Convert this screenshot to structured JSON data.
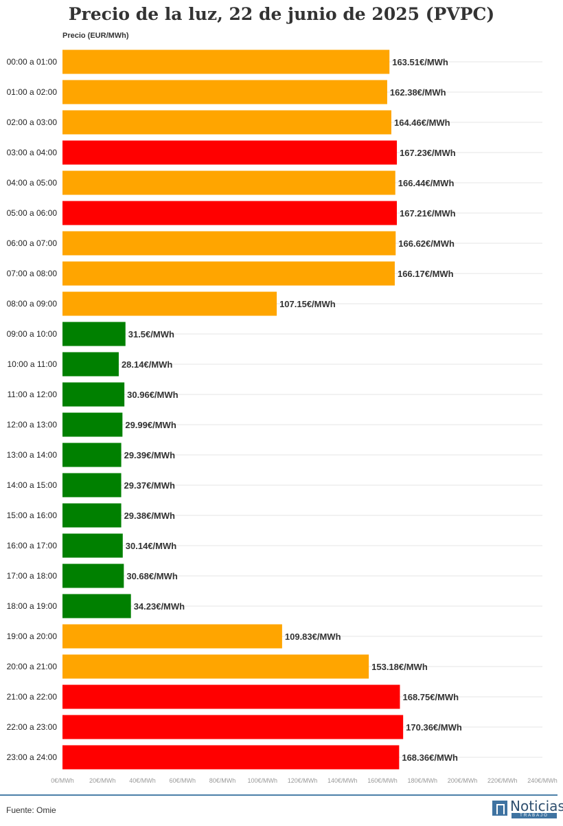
{
  "chart_data": {
    "type": "bar",
    "orientation": "horizontal",
    "title": "Precio de la luz, 22 de junio de 2025 (PVPC)",
    "ylabel": "Precio (EUR/MWh)",
    "xlim": [
      0,
      240
    ],
    "xticks": [
      "0€/MWh",
      "20€/MWh",
      "40€/MWh",
      "60€/MWh",
      "80€/MWh",
      "100€/MWh",
      "120€/MWh",
      "140€/MWh",
      "160€/MWh",
      "180€/MWh",
      "200€/MWh",
      "220€/MWh",
      "240€/MWh"
    ],
    "grid": true,
    "categories": [
      "00:00 a 01:00",
      "01:00 a 02:00",
      "02:00 a 03:00",
      "03:00 a 04:00",
      "04:00 a 05:00",
      "05:00 a 06:00",
      "06:00 a 07:00",
      "07:00 a 08:00",
      "08:00 a 09:00",
      "09:00 a 10:00",
      "10:00 a 11:00",
      "11:00 a 12:00",
      "12:00 a 13:00",
      "13:00 a 14:00",
      "14:00 a 15:00",
      "15:00 a 16:00",
      "16:00 a 17:00",
      "17:00 a 18:00",
      "18:00 a 19:00",
      "19:00 a 20:00",
      "20:00 a 21:00",
      "21:00 a 22:00",
      "22:00 a 23:00",
      "23:00 a 24:00"
    ],
    "values": [
      163.51,
      162.38,
      164.46,
      167.23,
      166.44,
      167.21,
      166.62,
      166.17,
      107.15,
      31.5,
      28.14,
      30.96,
      29.99,
      29.39,
      29.37,
      29.38,
      30.14,
      30.68,
      34.23,
      109.83,
      153.18,
      168.75,
      170.36,
      168.36
    ],
    "labels": [
      "163.51€/MWh",
      "162.38€/MWh",
      "164.46€/MWh",
      "167.23€/MWh",
      "166.44€/MWh",
      "167.21€/MWh",
      "166.62€/MWh",
      "166.17€/MWh",
      "107.15€/MWh",
      "31.5€/MWh",
      "28.14€/MWh",
      "30.96€/MWh",
      "29.99€/MWh",
      "29.39€/MWh",
      "29.37€/MWh",
      "29.38€/MWh",
      "30.14€/MWh",
      "30.68€/MWh",
      "34.23€/MWh",
      "109.83€/MWh",
      "153.18€/MWh",
      "168.75€/MWh",
      "170.36€/MWh",
      "168.36€/MWh"
    ],
    "levels": [
      "medio",
      "medio",
      "medio",
      "alto",
      "medio",
      "alto",
      "medio",
      "medio",
      "medio",
      "bajo",
      "bajo",
      "bajo",
      "bajo",
      "bajo",
      "bajo",
      "bajo",
      "bajo",
      "bajo",
      "bajo",
      "medio",
      "medio",
      "alto",
      "alto",
      "alto"
    ],
    "colors": {
      "bajo": "#008000",
      "medio": "#ffa500",
      "alto": "#ff0000"
    }
  },
  "footer": {
    "source": "Fuente: Omie",
    "logo_text": "Noticias",
    "logo_sub": "TRABAJO"
  }
}
